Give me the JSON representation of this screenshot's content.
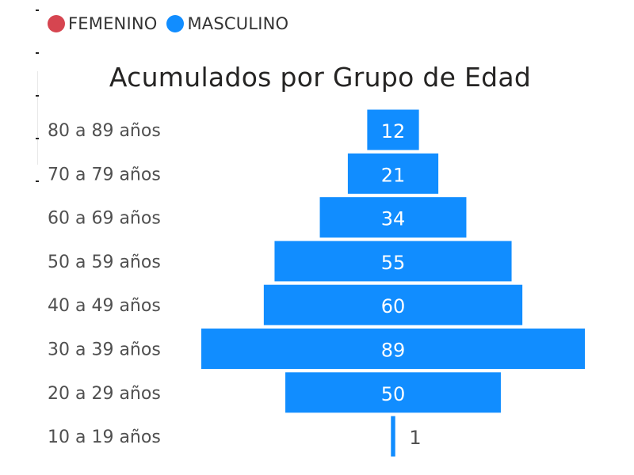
{
  "legend": {
    "items": [
      {
        "label": "FEMENINO",
        "color": "#D64550"
      },
      {
        "label": "MASCULINO",
        "color": "#118DFF"
      }
    ]
  },
  "chart_data": {
    "type": "bar",
    "orientation": "horizontal-centered",
    "title": "Acumulados por Grupo de Edad",
    "categories": [
      "80 a 89 años",
      "70 a 79 años",
      "60 a 69 años",
      "50 a 59 años",
      "40 a 49 años",
      "30 a 39 años",
      "20 a 29 años",
      "10 a 19 años"
    ],
    "series": [
      {
        "name": "MASCULINO",
        "color": "#118DFF",
        "values": [
          12,
          21,
          34,
          55,
          60,
          89,
          50,
          1
        ]
      }
    ],
    "data_labels": true,
    "legend_position": "top-left",
    "grid": false
  }
}
